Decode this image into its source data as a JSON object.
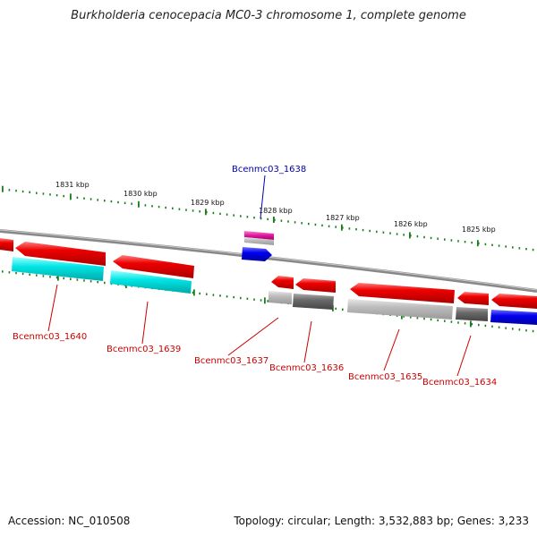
{
  "title": "Burkholderia cenocepacia MC0-3 chromosome 1, complete genome",
  "footer": {
    "accession": "Accession: NC_010508",
    "topology": "Topology: circular; Length: 3,532,883 bp; Genes: 3,233"
  },
  "ruler_labels": [
    "1831 kbp",
    "1830 kbp",
    "1829 kbp",
    "1828 kbp",
    "1827 kbp",
    "1826 kbp",
    "1825 kbp"
  ],
  "gene_labels": {
    "top": "Bcenmc03_1638",
    "bottom": [
      "Bcenmc03_1640",
      "Bcenmc03_1639",
      "Bcenmc03_1637",
      "Bcenmc03_1636",
      "Bcenmc03_1635",
      "Bcenmc03_1634"
    ]
  },
  "colors": {
    "gene": "#ee0000",
    "cds_cyan": "#00e5e5",
    "cds_grey_light": "#b8b8b8",
    "cds_grey_dark": "#666666",
    "cds_blue": "#0000ee",
    "misc_magenta": "#e0189c",
    "ruler_tick": "#1a7f1a",
    "label_top": "#0000aa",
    "label_bottom": "#cc0000",
    "backbone": "#888888"
  }
}
